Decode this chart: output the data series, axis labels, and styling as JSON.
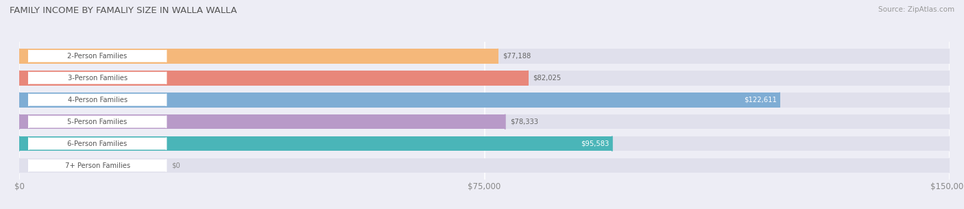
{
  "title": "FAMILY INCOME BY FAMALIY SIZE IN WALLA WALLA",
  "source": "Source: ZipAtlas.com",
  "categories": [
    "2-Person Families",
    "3-Person Families",
    "4-Person Families",
    "5-Person Families",
    "6-Person Families",
    "7+ Person Families"
  ],
  "values": [
    77188,
    82025,
    122611,
    78333,
    95583,
    0
  ],
  "bar_colors": [
    "#f5b87a",
    "#e8877a",
    "#7fadd4",
    "#b89ac8",
    "#4ab5b8",
    "#c5cef0"
  ],
  "value_labels": [
    "$77,188",
    "$82,025",
    "$122,611",
    "$78,333",
    "$95,583",
    "$0"
  ],
  "value_label_inside": [
    false,
    false,
    true,
    false,
    true,
    false
  ],
  "xlim": [
    0,
    150000
  ],
  "xtick_labels": [
    "$0",
    "$75,000",
    "$150,000"
  ],
  "bg_color": "#ededf5",
  "bar_bg_color": "#e0e0ec",
  "title_color": "#555555",
  "source_color": "#999999",
  "label_text_color": "#555555",
  "value_text_color_outside": "#666666",
  "value_text_color_inside": "#ffffff",
  "zero_value_color": "#888888"
}
